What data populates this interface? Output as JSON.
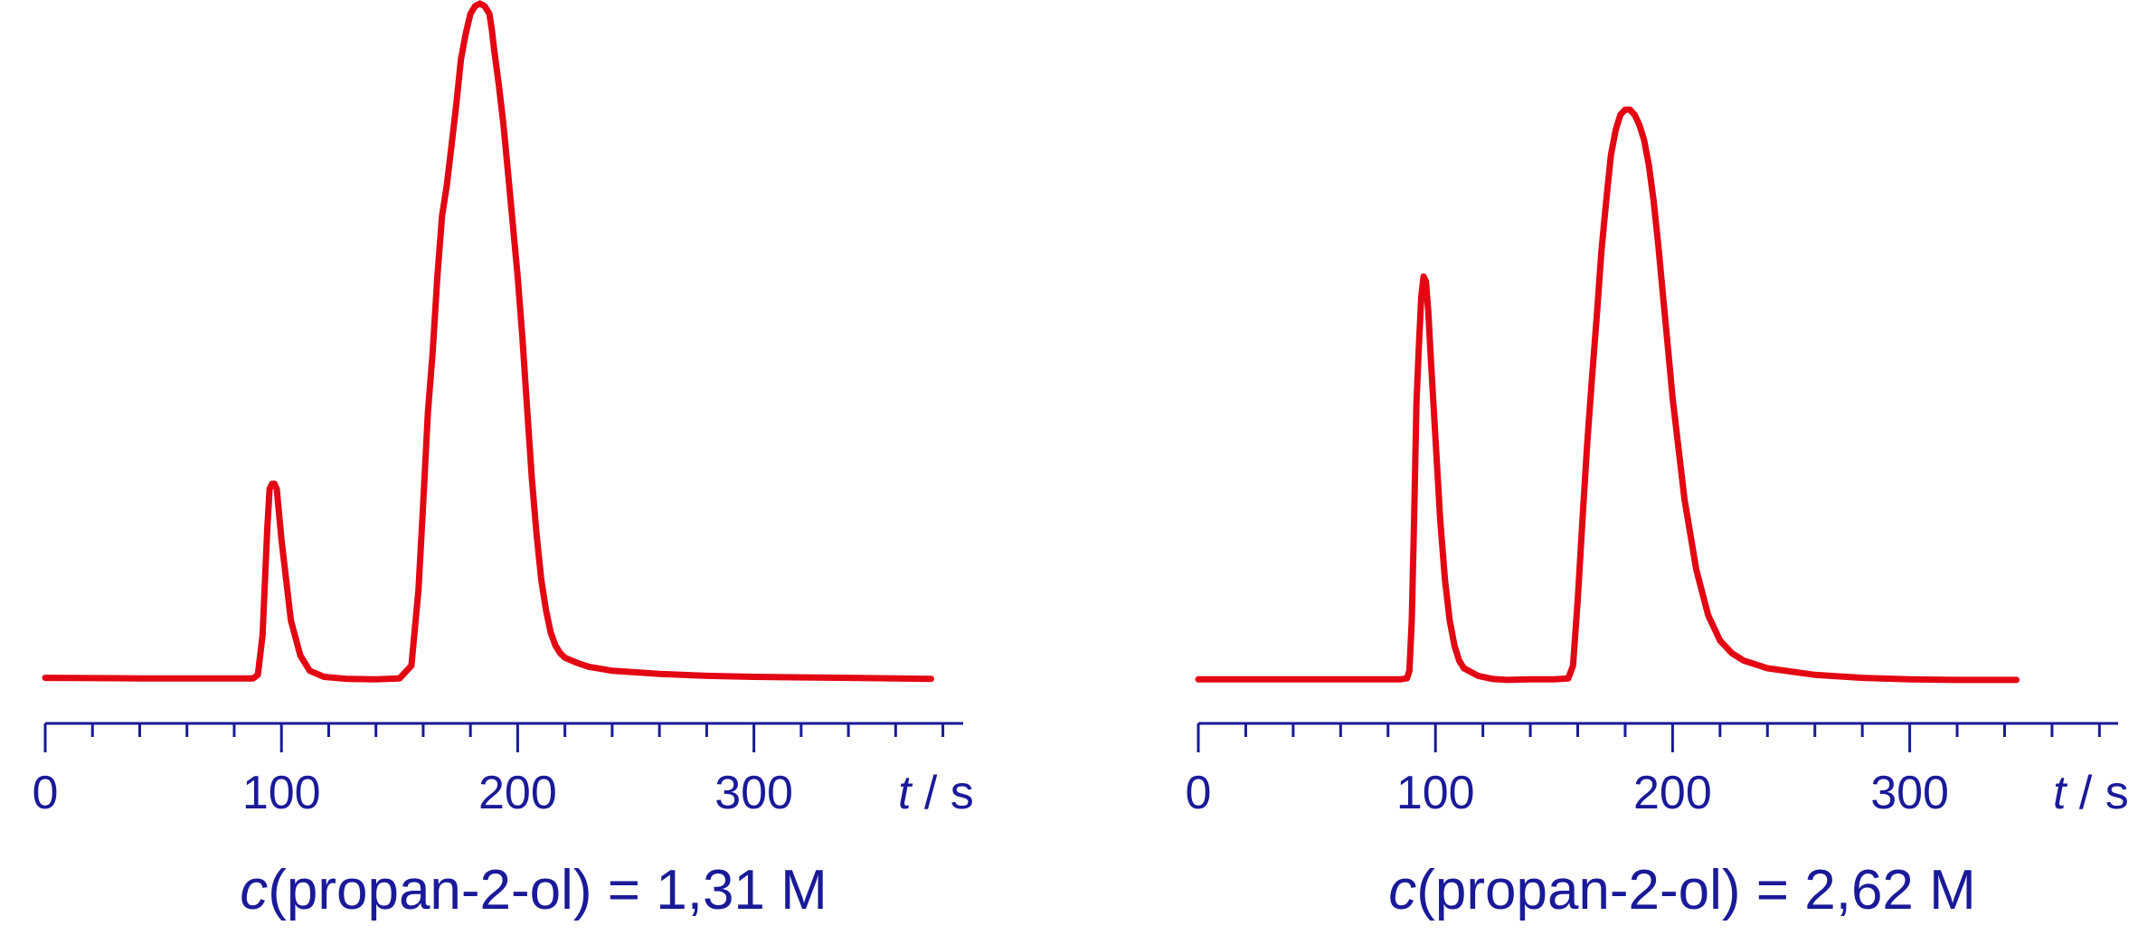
{
  "chart_data": [
    {
      "type": "line",
      "title": "",
      "xlabel": {
        "symbol": "t",
        "unit": "s"
      },
      "ylabel": "",
      "xlim": [
        0,
        390
      ],
      "xticks": [
        0,
        100,
        200,
        300
      ],
      "caption": {
        "symbol": "c",
        "text": "(propan-2-ol) = 1,31 M"
      },
      "color": "#e30613",
      "series": [
        {
          "x": [
            0,
            40,
            80,
            88,
            90,
            92,
            94,
            95,
            96,
            97,
            98,
            100,
            104,
            108,
            112,
            118,
            128,
            140,
            150,
            155,
            158,
            160,
            162,
            164,
            166,
            168,
            170,
            172,
            174,
            176,
            178,
            180,
            182,
            184,
            186,
            188,
            189,
            190,
            192,
            194,
            196,
            198,
            200,
            202,
            204,
            206,
            208,
            210,
            212,
            214,
            216,
            218,
            220,
            225,
            230,
            240,
            260,
            280,
            300,
            320,
            340,
            360,
            375
          ],
          "y": [
            0.006,
            0.005,
            0.005,
            0.005,
            0.012,
            0.09,
            0.3,
            0.38,
            0.39,
            0.39,
            0.38,
            0.28,
            0.12,
            0.05,
            0.02,
            0.008,
            0.004,
            0.003,
            0.005,
            0.03,
            0.18,
            0.35,
            0.53,
            0.65,
            0.8,
            0.92,
            0.98,
            1.06,
            1.14,
            1.23,
            1.28,
            1.32,
            1.335,
            1.34,
            1.335,
            1.32,
            1.29,
            1.25,
            1.18,
            1.1,
            1.0,
            0.9,
            0.8,
            0.68,
            0.54,
            0.4,
            0.29,
            0.2,
            0.14,
            0.095,
            0.07,
            0.055,
            0.046,
            0.036,
            0.028,
            0.02,
            0.014,
            0.01,
            0.008,
            0.007,
            0.006,
            0.005,
            0.004
          ]
        }
      ]
    },
    {
      "type": "line",
      "title": "",
      "xlabel": {
        "symbol": "t",
        "unit": "s"
      },
      "ylabel": "",
      "xlim": [
        0,
        390
      ],
      "xticks": [
        0,
        100,
        200,
        300
      ],
      "caption": {
        "symbol": "c",
        "text": "(propan-2-ol) = 2,62 M"
      },
      "color": "#e30613",
      "series": [
        {
          "x": [
            0,
            40,
            85,
            88,
            89,
            90,
            91,
            92,
            93,
            94,
            95,
            96,
            97,
            98,
            100,
            102,
            104,
            106,
            108,
            110,
            112,
            118,
            124,
            130,
            140,
            150,
            156,
            158,
            160,
            162,
            164,
            166,
            168,
            170,
            172,
            174,
            176,
            178,
            180,
            182,
            184,
            186,
            188,
            190,
            192,
            194,
            196,
            198,
            200,
            205,
            210,
            215,
            220,
            225,
            230,
            240,
            260,
            280,
            300,
            320,
            340,
            345
          ],
          "y": [
            0.003,
            0.003,
            0.003,
            0.005,
            0.02,
            0.12,
            0.32,
            0.55,
            0.66,
            0.76,
            0.8,
            0.79,
            0.73,
            0.64,
            0.48,
            0.32,
            0.2,
            0.12,
            0.07,
            0.04,
            0.025,
            0.01,
            0.004,
            0.002,
            0.003,
            0.003,
            0.005,
            0.03,
            0.16,
            0.32,
            0.47,
            0.6,
            0.72,
            0.85,
            0.95,
            1.04,
            1.09,
            1.12,
            1.13,
            1.13,
            1.12,
            1.1,
            1.07,
            1.02,
            0.95,
            0.86,
            0.76,
            0.66,
            0.56,
            0.36,
            0.22,
            0.13,
            0.08,
            0.055,
            0.04,
            0.025,
            0.012,
            0.006,
            0.003,
            0.002,
            0.002,
            0.002
          ]
        }
      ]
    }
  ]
}
